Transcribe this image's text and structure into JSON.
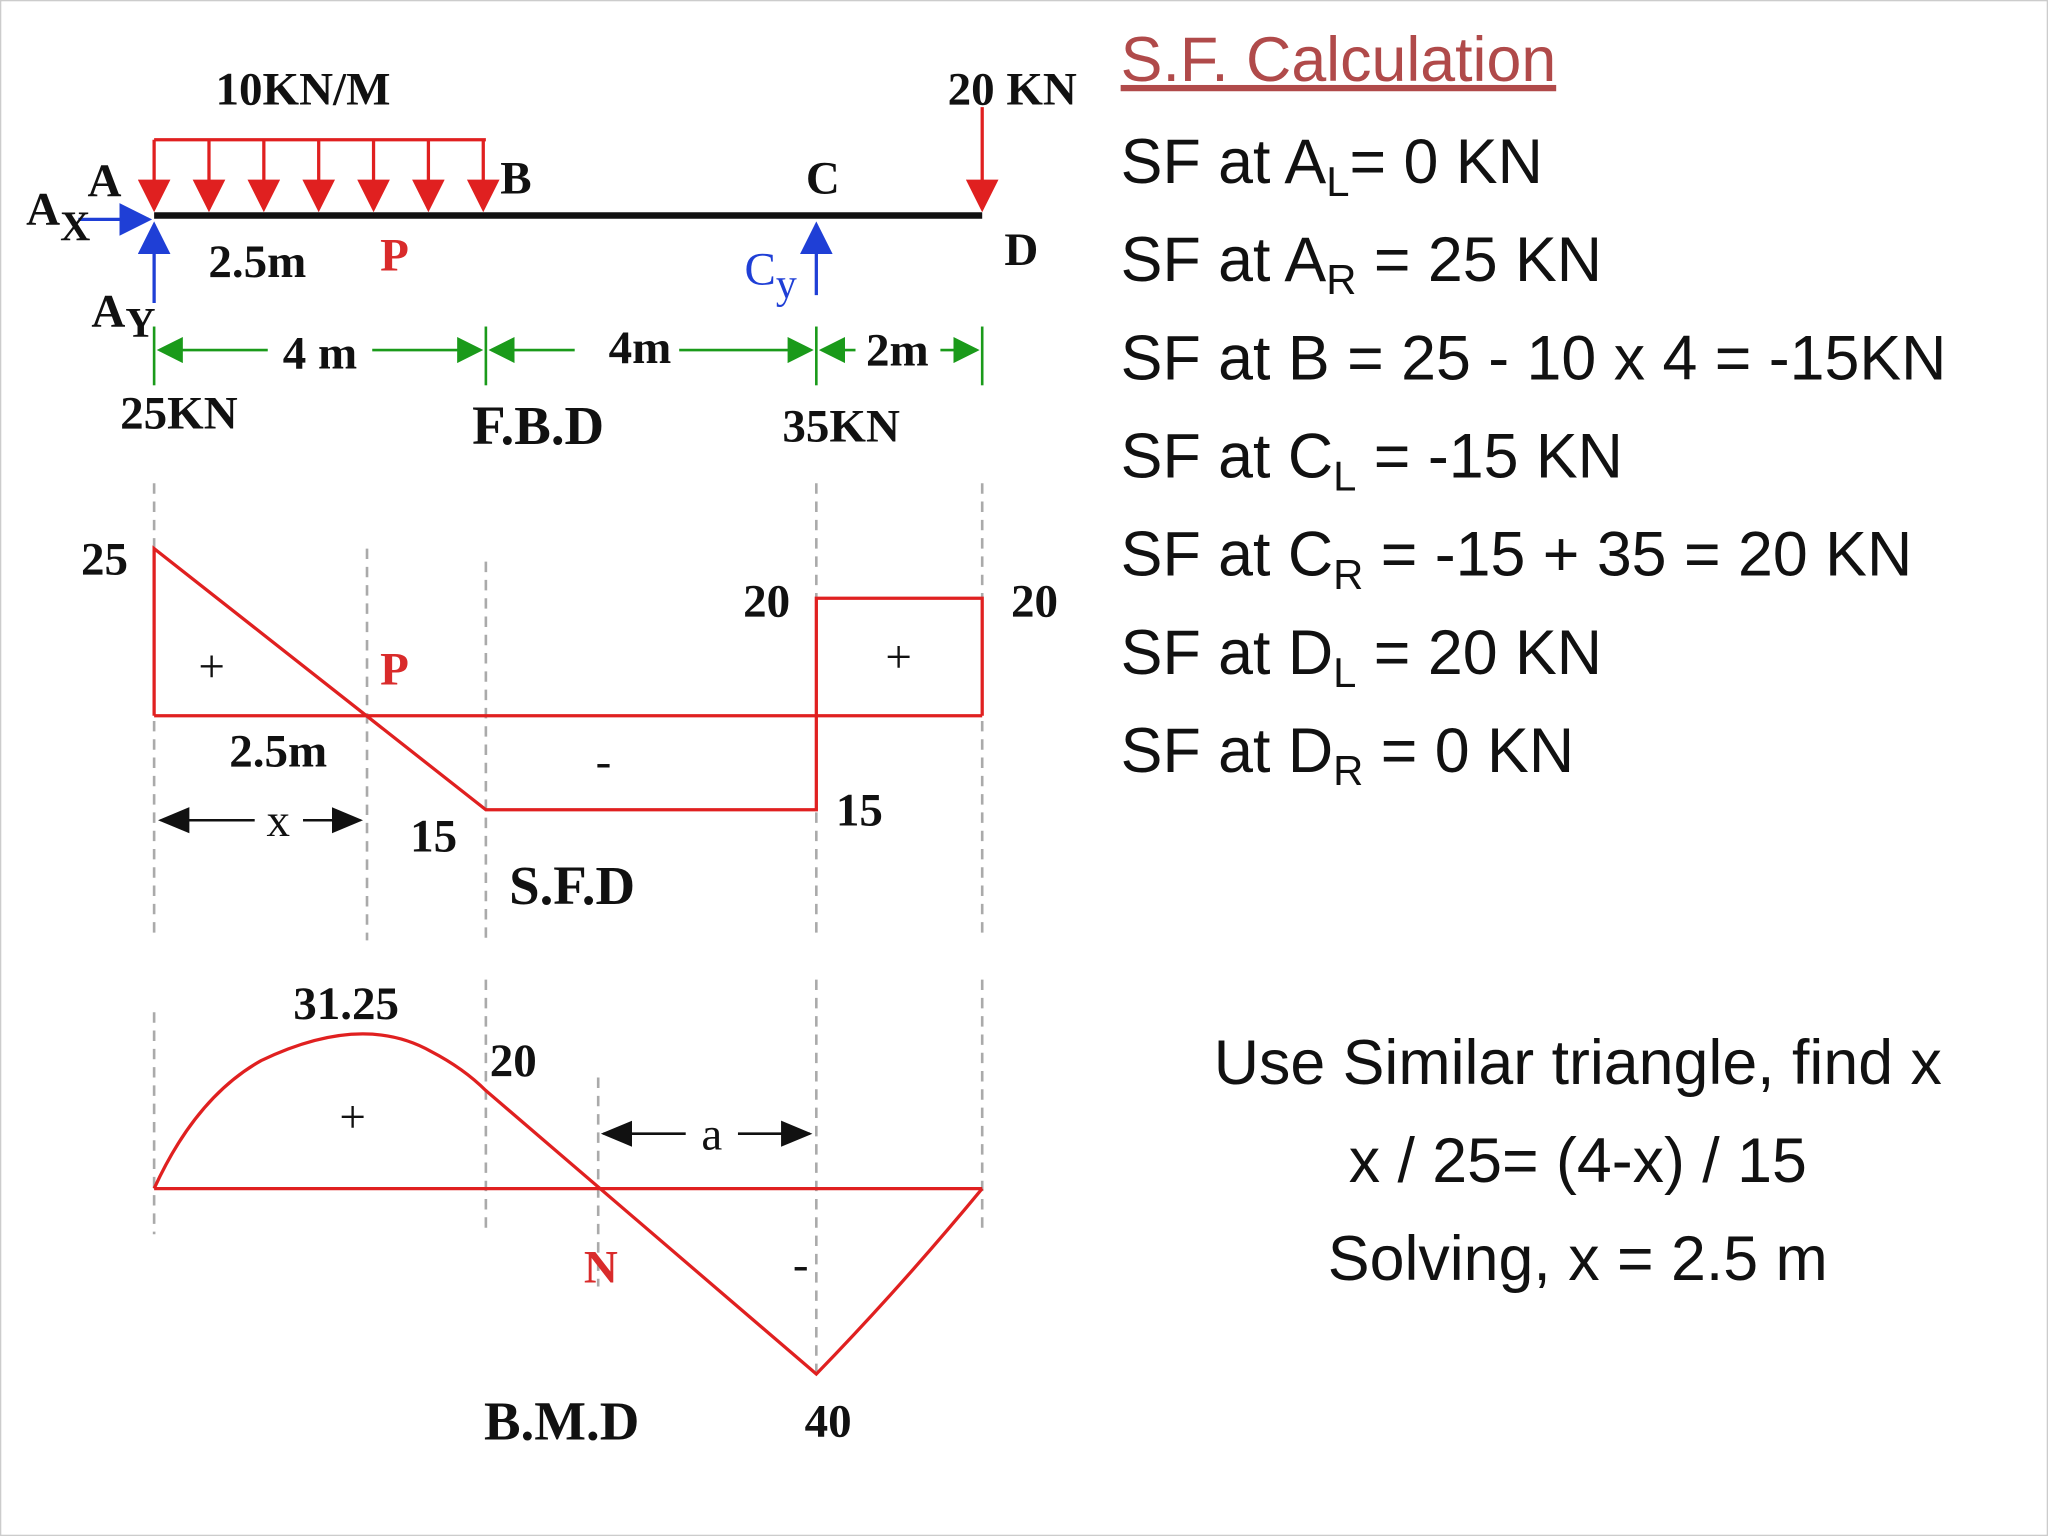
{
  "fbd": {
    "load": "10KN/M",
    "point_load": "20 KN",
    "A": "A",
    "B": "B",
    "C": "C",
    "D": "D",
    "Ax": {
      "main": "A",
      "sub": "X"
    },
    "Ay": {
      "main": "A",
      "sub": "Y"
    },
    "Cy": {
      "main": "C",
      "sub": "y"
    },
    "dist": "2.5m",
    "P": "P",
    "dims": [
      "4 m",
      "4m",
      "2m"
    ],
    "reaction_a": "25KN",
    "reaction_c": "35KN",
    "title": "F.B.D"
  },
  "sfd": {
    "a": "25",
    "plus_left": "+",
    "P": "P",
    "dist": "2.5m",
    "minus": "-",
    "c_right": "20",
    "d": "20",
    "plus_right": "+",
    "b": "15",
    "c_left": "15",
    "x": "x",
    "title": "S.F.D"
  },
  "bmd": {
    "max": "31.25",
    "b": "20",
    "plus": "+",
    "a": "a",
    "N": "N",
    "minus": "-",
    "c": "40",
    "title": "B.M.D"
  },
  "calc": {
    "title": "S.F. Calculation",
    "lines": [
      {
        "text": "SF at A",
        "sub": "L",
        "rest": "= 0 KN"
      },
      {
        "text": "SF at A",
        "sub": "R",
        "rest": " = 25 KN"
      },
      {
        "text": "SF at B = 25 - 10 x 4 = -15KN"
      },
      {
        "text": "SF at C",
        "sub": "L",
        "rest": " = -15 KN"
      },
      {
        "text": "SF at C",
        "sub": "R",
        "rest": " = -15 + 35 = 20 KN"
      },
      {
        "text": "SF at D",
        "sub": "L",
        "rest": " = 20 KN"
      },
      {
        "text": "SF at D",
        "sub": "R",
        "rest": " = 0 KN"
      }
    ],
    "note": [
      "Use Similar triangle, find x",
      "x / 25= (4-x) / 15",
      "Solving, x = 2.5 m"
    ]
  }
}
